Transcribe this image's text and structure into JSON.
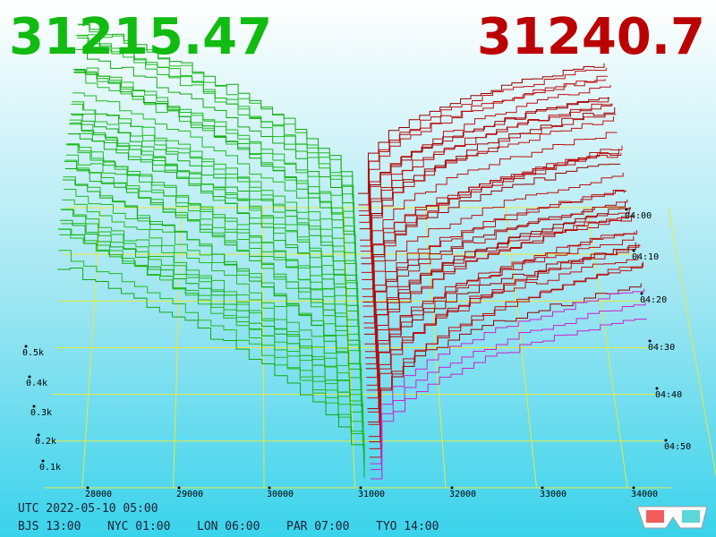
{
  "header": {
    "bid": "31215.47",
    "ask": "31240.7"
  },
  "price_labels": [
    "28000",
    "29000",
    "30000",
    "31000",
    "32000",
    "33000",
    "34000"
  ],
  "volume_labels": [
    "0.5k",
    "0.4k",
    "0.3k",
    "0.2k",
    "0.1k"
  ],
  "time_labels": [
    "04:00",
    "04:10",
    "04:20",
    "04:30",
    "04:40",
    "04:50"
  ],
  "footer": {
    "utc": "UTC 2022-05-10 05:00",
    "zones": [
      "BJS 13:00",
      "NYC 01:00",
      "LON 06:00",
      "PAR 07:00",
      "TYO 14:00"
    ]
  }
}
